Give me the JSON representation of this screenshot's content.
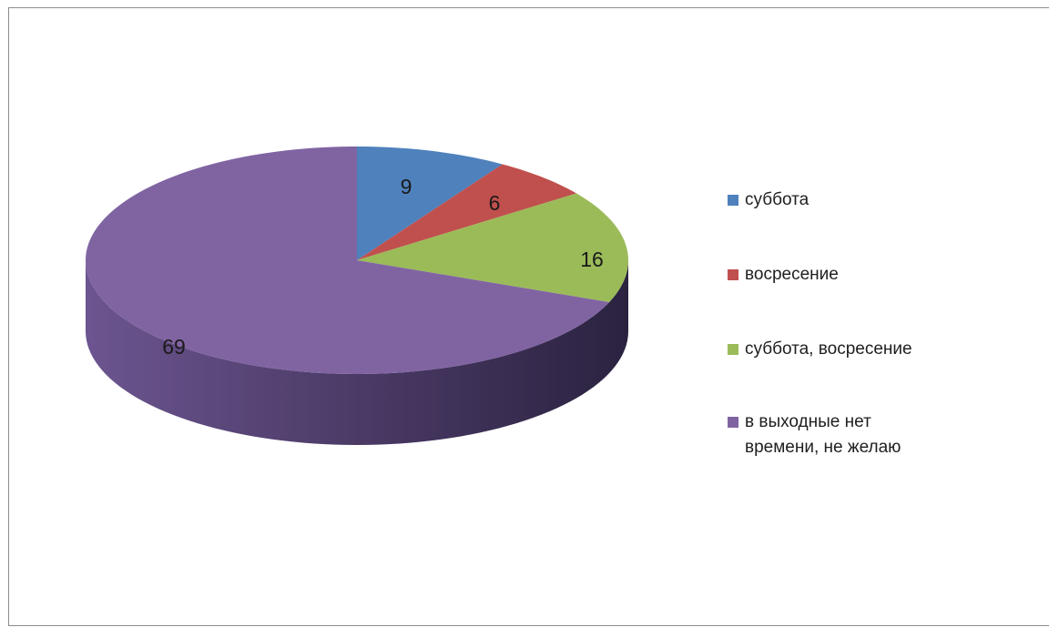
{
  "chart_data": {
    "type": "pie",
    "title": "",
    "categories": [
      "суббота",
      "восресение",
      "суббота, восресение",
      "в выходные нет времени, не желаю"
    ],
    "values": [
      9,
      6,
      16,
      69
    ],
    "data_labels": [
      "9",
      "6",
      "16",
      "69"
    ],
    "colors": [
      "#4f81bd",
      "#c0504d",
      "#9bbb59",
      "#8064a2"
    ],
    "legend_position": "right",
    "three_d": true
  }
}
